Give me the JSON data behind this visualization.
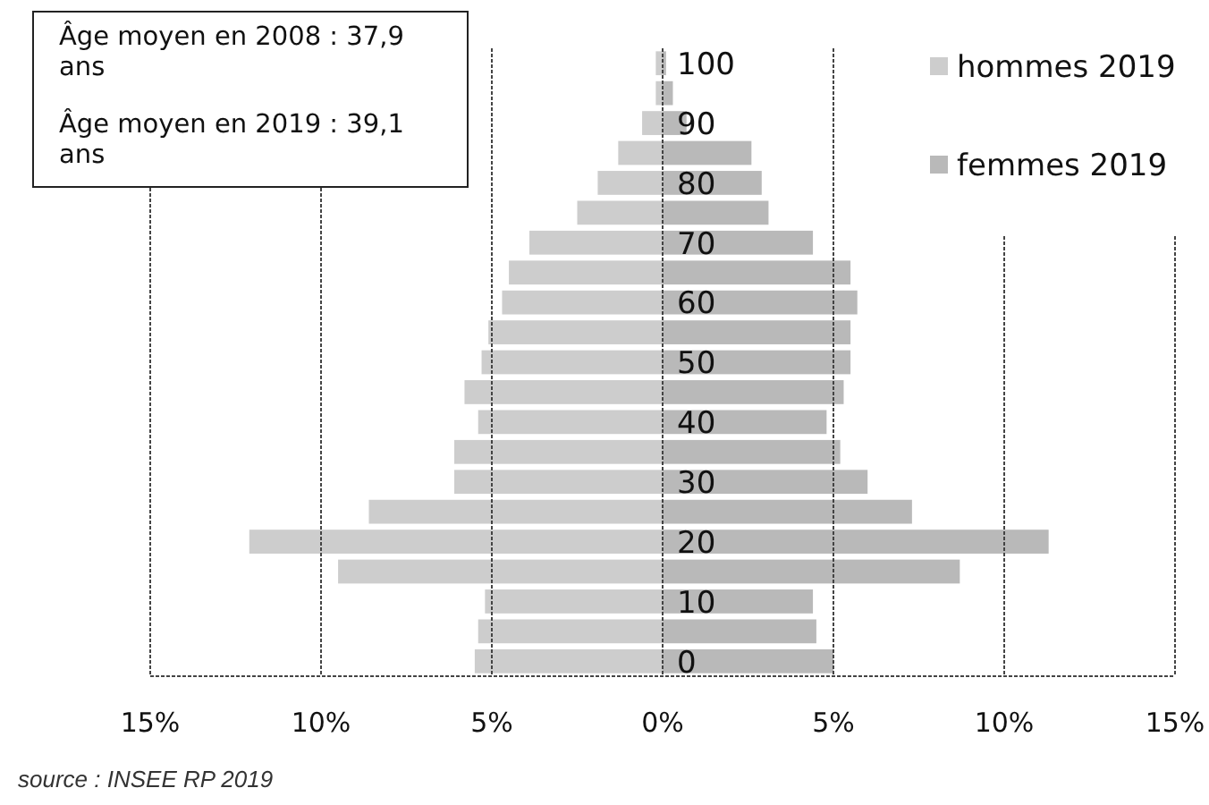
{
  "chart_data": {
    "type": "bar",
    "orientation": "horizontal",
    "stacked": true,
    "categories": [
      "100",
      null,
      "90",
      null,
      "80",
      null,
      "70",
      null,
      "60",
      null,
      "50",
      null,
      "40",
      null,
      "30",
      null,
      "20",
      null,
      "10",
      null,
      "0"
    ],
    "series": [
      {
        "name": "hommes 2019",
        "color": "#cdcdcd",
        "values": [
          -0.2,
          -0.2,
          -0.6,
          -1.3,
          -1.9,
          -2.5,
          -3.9,
          -4.5,
          -4.7,
          -5.1,
          -5.3,
          -5.8,
          -5.4,
          -6.1,
          -6.1,
          -8.6,
          -12.1,
          -9.5,
          -5.2,
          -5.4,
          -5.5
        ]
      },
      {
        "name": "femmes 2019",
        "color": "#b9b9b9",
        "values": [
          0.1,
          0.3,
          0.7,
          2.6,
          2.9,
          3.1,
          4.4,
          5.5,
          5.7,
          5.5,
          5.5,
          5.3,
          4.8,
          5.2,
          6.0,
          7.3,
          11.3,
          8.7,
          4.4,
          4.5,
          5.0
        ]
      }
    ],
    "xlim": [
      -15,
      15
    ],
    "xticks": [
      {
        "value": -15,
        "label": "15%"
      },
      {
        "value": -10,
        "label": "10%"
      },
      {
        "value": -5,
        "label": "5%"
      },
      {
        "value": 0,
        "label": "0%"
      },
      {
        "value": 5,
        "label": "5%"
      },
      {
        "value": 10,
        "label": "10%"
      },
      {
        "value": 15,
        "label": "15%"
      }
    ],
    "grid": "x",
    "legend": "top right",
    "annotations": [
      "Âge moyen en 2008 : 37,9 ans",
      "Âge moyen en 2019 : 39,1 ans",
      "source : INSEE RP 2019"
    ]
  }
}
